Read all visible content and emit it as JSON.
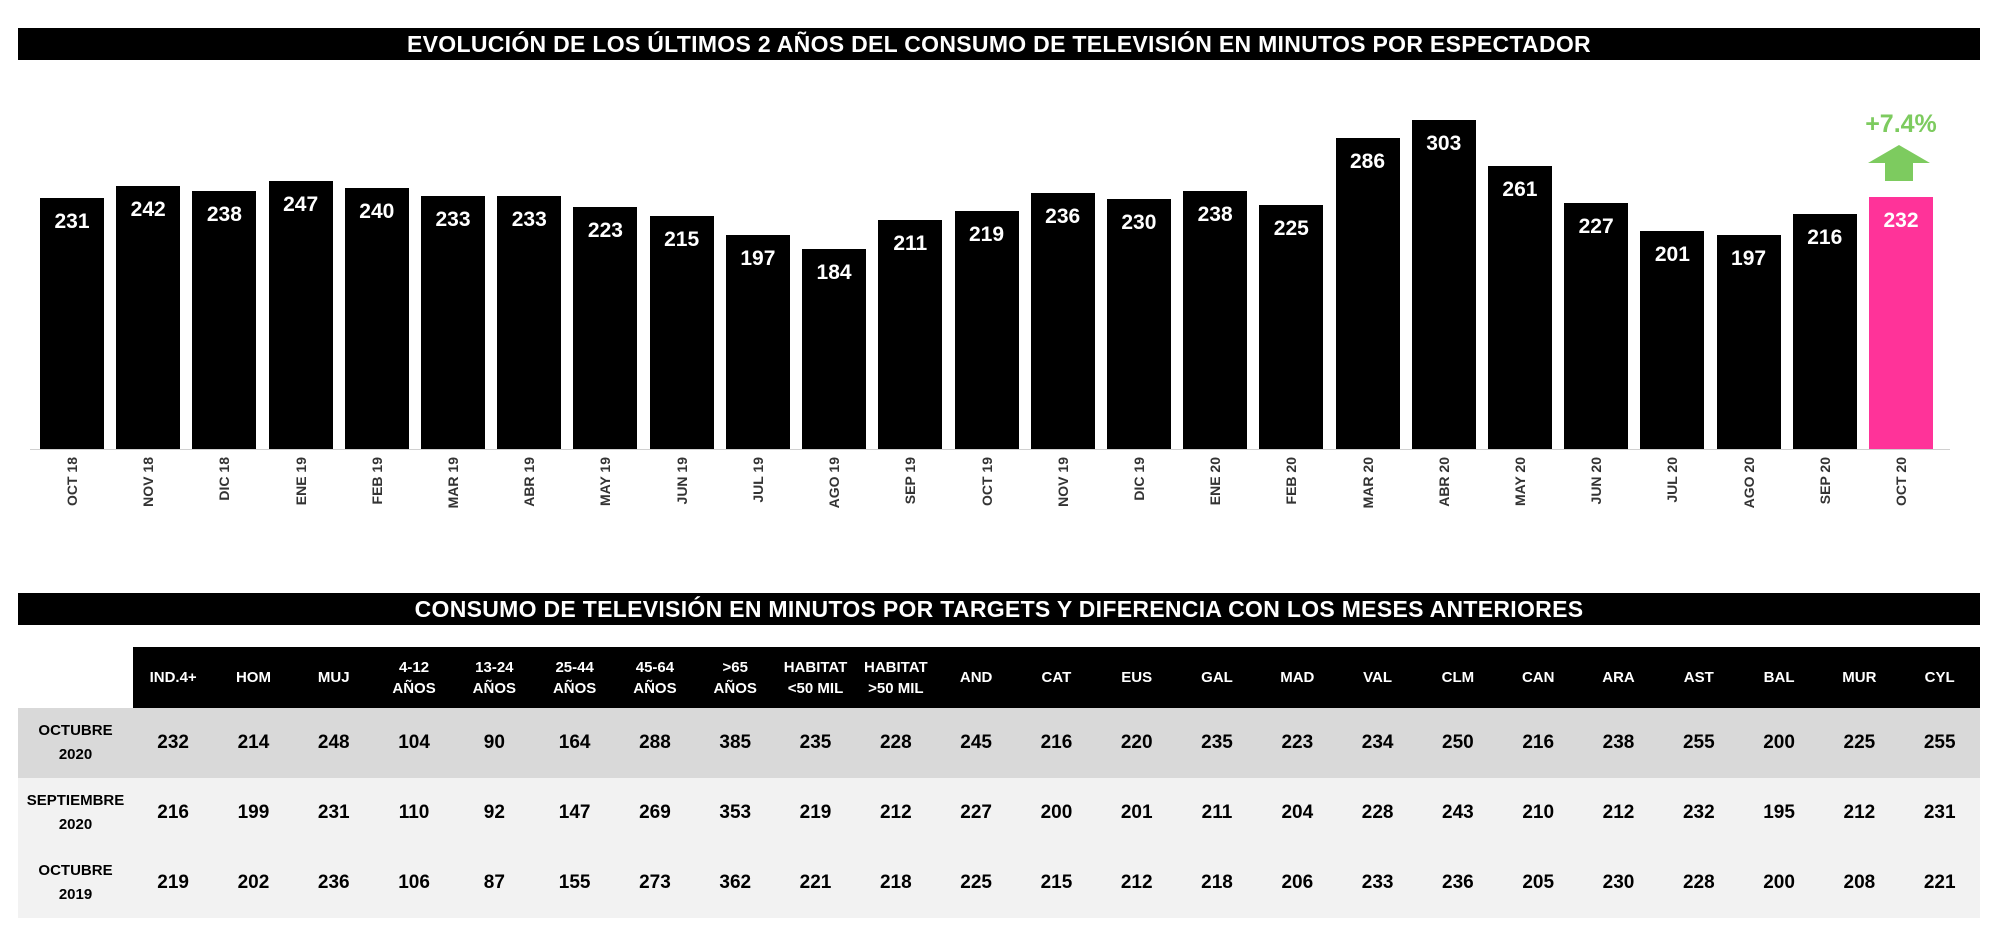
{
  "chart_data": {
    "type": "bar",
    "title": "EVOLUCIÓN DE LOS ÚLTIMOS 2 AÑOS DEL CONSUMO DE TELEVISIÓN EN MINUTOS POR ESPECTADOR",
    "categories": [
      "OCT 18",
      "NOV 18",
      "DIC 18",
      "ENE 19",
      "FEB 19",
      "MAR 19",
      "ABR 19",
      "MAY 19",
      "JUN 19",
      "JUL 19",
      "AGO 19",
      "SEP 19",
      "OCT 19",
      "NOV 19",
      "DIC 19",
      "ENE 20",
      "FEB 20",
      "MAR 20",
      "ABR 20",
      "MAY 20",
      "JUN 20",
      "JUL 20",
      "AGO 20",
      "SEP 20",
      "OCT 20"
    ],
    "values": [
      231,
      242,
      238,
      247,
      240,
      233,
      233,
      223,
      215,
      197,
      184,
      211,
      219,
      236,
      230,
      238,
      225,
      286,
      303,
      261,
      227,
      201,
      197,
      216,
      232
    ],
    "ylim": [
      0,
      310
    ],
    "grid": false,
    "bar_color": "#000000",
    "highlight_color": "#ff3399",
    "highlight_index": 24,
    "annotation": {
      "text": "+7.4%",
      "color": "#7dcb5f",
      "icon": "arrow-up-icon"
    }
  },
  "table": {
    "title": "CONSUMO DE TELEVISIÓN EN MINUTOS POR TARGETS Y DIFERENCIA CON LOS MESES ANTERIORES",
    "headers": [
      [
        "IND.4+"
      ],
      [
        "HOM"
      ],
      [
        "MUJ"
      ],
      [
        "4-12",
        "AÑOS"
      ],
      [
        "13-24",
        "AÑOS"
      ],
      [
        "25-44",
        "AÑOS"
      ],
      [
        "45-64",
        "AÑOS"
      ],
      [
        ">65",
        "AÑOS"
      ],
      [
        "HABITAT",
        "<50 MIL"
      ],
      [
        "HABITAT",
        ">50 MIL"
      ],
      [
        "AND"
      ],
      [
        "CAT"
      ],
      [
        "EUS"
      ],
      [
        "GAL"
      ],
      [
        "MAD"
      ],
      [
        "VAL"
      ],
      [
        "CLM"
      ],
      [
        "CAN"
      ],
      [
        "ARA"
      ],
      [
        "AST"
      ],
      [
        "BAL"
      ],
      [
        "MUR"
      ],
      [
        "CYL"
      ]
    ],
    "rows": [
      {
        "label": [
          "OCTUBRE",
          "2020"
        ],
        "values": [
          232,
          214,
          248,
          104,
          90,
          164,
          288,
          385,
          235,
          228,
          245,
          216,
          220,
          235,
          223,
          234,
          250,
          216,
          238,
          255,
          200,
          225,
          255
        ]
      },
      {
        "label": [
          "SEPTIEMBRE",
          "2020"
        ],
        "values": [
          216,
          199,
          231,
          110,
          92,
          147,
          269,
          353,
          219,
          212,
          227,
          200,
          201,
          211,
          204,
          228,
          243,
          210,
          212,
          232,
          195,
          212,
          231
        ]
      },
      {
        "label": [
          "OCTUBRE",
          "2019"
        ],
        "values": [
          219,
          202,
          236,
          106,
          87,
          155,
          273,
          362,
          221,
          218,
          225,
          215,
          212,
          218,
          206,
          233,
          236,
          205,
          230,
          228,
          200,
          208,
          221
        ]
      }
    ]
  }
}
